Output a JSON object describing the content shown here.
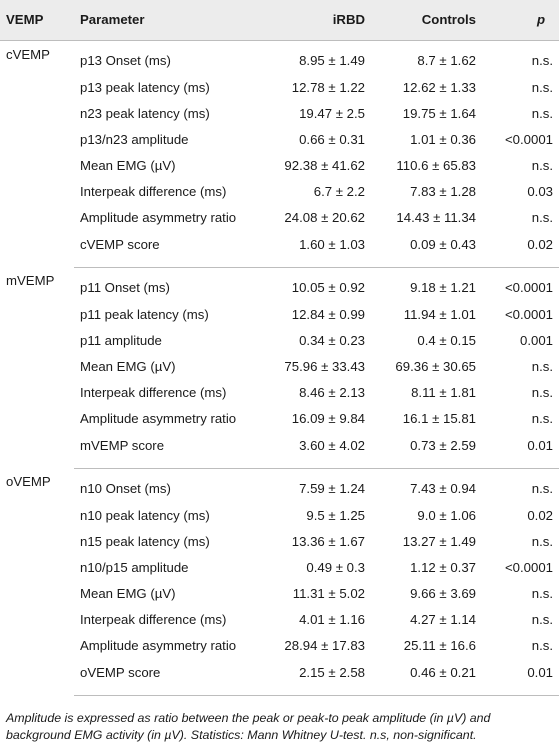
{
  "table": {
    "headers": {
      "vemp": "VEMP",
      "parameter": "Parameter",
      "irbd": "iRBD",
      "controls": "Controls",
      "p": "p"
    },
    "groups": [
      {
        "name": "cVEMP",
        "rows": [
          {
            "parameter": "p13 Onset (ms)",
            "irbd": "8.95 ± 1.49",
            "controls": "8.7 ± 1.62",
            "p": "n.s."
          },
          {
            "parameter": "p13 peak latency (ms)",
            "irbd": "12.78 ± 1.22",
            "controls": "12.62 ± 1.33",
            "p": "n.s."
          },
          {
            "parameter": "n23 peak latency (ms)",
            "irbd": "19.47 ± 2.5",
            "controls": "19.75 ± 1.64",
            "p": "n.s."
          },
          {
            "parameter": "p13/n23 amplitude",
            "irbd": "0.66 ± 0.31",
            "controls": "1.01 ± 0.36",
            "p": "<0.0001"
          },
          {
            "parameter": "Mean EMG (µV)",
            "irbd": "92.38 ± 41.62",
            "controls": "110.6 ± 65.83",
            "p": "n.s."
          },
          {
            "parameter": "Interpeak difference (ms)",
            "irbd": "6.7 ± 2.2",
            "controls": "7.83 ± 1.28",
            "p": "0.03"
          },
          {
            "parameter": "Amplitude asymmetry ratio",
            "irbd": "24.08 ± 20.62",
            "controls": "14.43 ± 11.34",
            "p": "n.s."
          },
          {
            "parameter": "cVEMP score",
            "irbd": "1.60 ± 1.03",
            "controls": "0.09 ± 0.43",
            "p": "0.02"
          }
        ]
      },
      {
        "name": "mVEMP",
        "rows": [
          {
            "parameter": "p11 Onset (ms)",
            "irbd": "10.05 ± 0.92",
            "controls": "9.18 ± 1.21",
            "p": "<0.0001"
          },
          {
            "parameter": "p11 peak latency (ms)",
            "irbd": "12.84 ± 0.99",
            "controls": "11.94 ± 1.01",
            "p": "<0.0001"
          },
          {
            "parameter": "p11 amplitude",
            "irbd": "0.34 ± 0.23",
            "controls": "0.4 ± 0.15",
            "p": "0.001"
          },
          {
            "parameter": "Mean EMG (µV)",
            "irbd": "75.96 ± 33.43",
            "controls": "69.36 ± 30.65",
            "p": "n.s."
          },
          {
            "parameter": "Interpeak difference (ms)",
            "irbd": "8.46 ± 2.13",
            "controls": "8.11 ± 1.81",
            "p": "n.s."
          },
          {
            "parameter": "Amplitude asymmetry ratio",
            "irbd": "16.09 ± 9.84",
            "controls": "16.1 ± 15.81",
            "p": "n.s."
          },
          {
            "parameter": "mVEMP score",
            "irbd": "3.60 ± 4.02",
            "controls": "0.73 ± 2.59",
            "p": "0.01"
          }
        ]
      },
      {
        "name": "oVEMP",
        "rows": [
          {
            "parameter": "n10 Onset (ms)",
            "irbd": "7.59 ± 1.24",
            "controls": "7.43 ± 0.94",
            "p": "n.s."
          },
          {
            "parameter": "n10 peak latency (ms)",
            "irbd": "9.5 ± 1.25",
            "controls": "9.0 ± 1.06",
            "p": "0.02"
          },
          {
            "parameter": "n15 peak latency (ms)",
            "irbd": "13.36 ± 1.67",
            "controls": "13.27 ± 1.49",
            "p": "n.s."
          },
          {
            "parameter": "n10/p15 amplitude",
            "irbd": "0.49 ± 0.3",
            "controls": "1.12 ± 0.37",
            "p": "<0.0001"
          },
          {
            "parameter": "Mean EMG (µV)",
            "irbd": "11.31 ± 5.02",
            "controls": "9.66 ± 3.69",
            "p": "n.s."
          },
          {
            "parameter": "Interpeak difference (ms)",
            "irbd": "4.01 ± 1.16",
            "controls": "4.27 ± 1.14",
            "p": "n.s."
          },
          {
            "parameter": "Amplitude asymmetry ratio",
            "irbd": "28.94 ± 17.83",
            "controls": "25.11 ± 16.6",
            "p": "n.s."
          },
          {
            "parameter": "oVEMP score",
            "irbd": "2.15 ± 2.58",
            "controls": "0.46 ± 0.21",
            "p": "0.01"
          }
        ]
      }
    ]
  },
  "footnote": "Amplitude is expressed as ratio between the peak or peak-to peak amplitude (in µV) and background EMG activity (in µV). Statistics: Mann Whitney U-test. n.s, non-significant.",
  "colors": {
    "header_background": "#ececec",
    "rule": "#bdbdbd",
    "text": "#1a1a1a"
  }
}
